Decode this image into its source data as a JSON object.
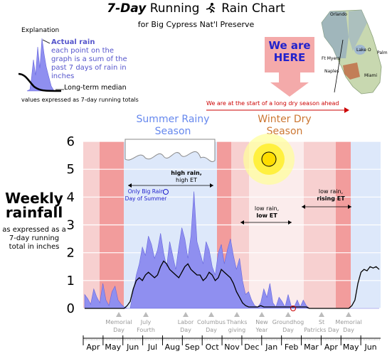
{
  "header": {
    "title_num": "7",
    "title_day": "-Day",
    "title_rest": "Running",
    "title_rest2": "Rain Chart",
    "subtitle": "for Big Cypress Nat'l Preserve"
  },
  "explanation": {
    "title": "Explanation",
    "actual_rain": "Actual rain",
    "actual_text": "each point on the graph is a sum of the past 7 days of rain in inches",
    "median": "Long-term median",
    "values_note": "values expressed as 7-day running totals"
  },
  "ylabel": {
    "line1": "Weekly",
    "line2": "rainfall",
    "line3": "as expressed as a 7-day running total in inches"
  },
  "map": {
    "cities": [
      "Orlando",
      "Lake O",
      "Ft Myers",
      "Palm Beach",
      "Naples",
      "Miami"
    ],
    "callout": "We are HERE"
  },
  "season_note": "We are at the start of a long dry season ahead",
  "seasons": {
    "summer": "Summer Rainy Season",
    "winter": "Winter Dry Season"
  },
  "annotations": {
    "high_rain": "high rain, high ET",
    "low_rain": "low rain, low ET",
    "rising": "low rain, rising ET",
    "only_big_rain": "Only Big Rain Day of Summer"
  },
  "colors": {
    "rain_fill": "#8f8ff0",
    "rain_stroke": "#6666dd",
    "median_line": "#000000",
    "summer_bg": "#dde8fa",
    "dry_light": "#f7d0d0",
    "dry_dark": "#f29c9c",
    "winter_bg": "#fbecec"
  },
  "chart_data": {
    "type": "area",
    "title": "7-Day Running Rain Chart",
    "ylim": [
      0,
      6
    ],
    "yticks": [
      0,
      1,
      2,
      3,
      4,
      5,
      6
    ],
    "grid": true,
    "months": [
      "Apr",
      "May",
      "Jun",
      "Jul",
      "Aug",
      "Sep",
      "Oct",
      "Nov",
      "Dec",
      "Jan",
      "Feb",
      "Mar",
      "Apr",
      "May",
      "Jun"
    ],
    "holidays": [
      "Memorial Day",
      "July Fourth",
      "Labor Day",
      "Columbus Day",
      "Thanks giving",
      "New Year",
      "Groundhog Day",
      "St Patricks Day",
      "Memorial Day"
    ],
    "series": [
      {
        "name": "Actual rain",
        "values": [
          0.5,
          0.35,
          0.15,
          0.7,
          0.4,
          0.2,
          0.9,
          0.3,
          0.1,
          0.6,
          0.8,
          0.3,
          0.15,
          0.05,
          0.0,
          0.0,
          0.6,
          1.2,
          1.6,
          2.2,
          1.9,
          2.6,
          2.3,
          1.8,
          2.1,
          2.7,
          2.0,
          1.5,
          2.4,
          1.9,
          1.4,
          2.2,
          2.9,
          2.5,
          1.8,
          2.6,
          4.2,
          2.4,
          2.0,
          1.6,
          2.4,
          2.1,
          1.5,
          1.2,
          2.0,
          2.3,
          1.6,
          2.1,
          2.5,
          1.9,
          1.4,
          1.8,
          1.0,
          0.5,
          0.6,
          0.3,
          0.1,
          0.05,
          0.2,
          0.7,
          0.4,
          0.9,
          0.2,
          0.05,
          0.4,
          0.25,
          0.05,
          0.5,
          0.1,
          0.05,
          0.3,
          0.05,
          0.3,
          0.1,
          0.0,
          0.0,
          0.0,
          0.0,
          0.0,
          0.0,
          0.0,
          0.0,
          0.0,
          0.0,
          0.0,
          0.0,
          0.0,
          0.0,
          0.0,
          0.0,
          0.0,
          0.0,
          0.0,
          0.0,
          0.0,
          0.0,
          0.0,
          0.0
        ]
      },
      {
        "name": "Long-term median",
        "values": [
          0.0,
          0.0,
          0.0,
          0.0,
          0.0,
          0.0,
          0.0,
          0.0,
          0.0,
          0.0,
          0.0,
          0.0,
          0.0,
          0.0,
          0.1,
          0.25,
          0.7,
          1.0,
          1.1,
          1.0,
          1.2,
          1.3,
          1.2,
          1.1,
          1.2,
          1.5,
          1.7,
          1.6,
          1.4,
          1.3,
          1.2,
          1.1,
          1.3,
          1.5,
          1.6,
          1.4,
          1.3,
          1.2,
          1.2,
          1.0,
          1.1,
          1.3,
          1.2,
          1.0,
          1.1,
          1.4,
          1.3,
          1.2,
          1.1,
          0.9,
          0.6,
          0.4,
          0.2,
          0.1,
          0.05,
          0.05,
          0.05,
          0.05,
          0.1,
          0.05,
          0.05,
          0.05,
          0.05,
          0.05,
          0.05,
          0.05,
          0.05,
          0.05,
          0.05,
          0.05,
          0.05,
          0.05,
          0.05,
          0.05,
          0.0,
          0.0,
          0.0,
          0.0,
          0.0,
          0.0,
          0.0,
          0.0,
          0.0,
          0.0,
          0.0,
          0.0,
          0.0,
          0.0,
          0.1,
          0.3,
          0.9,
          1.3,
          1.4,
          1.35,
          1.5,
          1.45,
          1.5,
          1.4
        ]
      }
    ]
  }
}
